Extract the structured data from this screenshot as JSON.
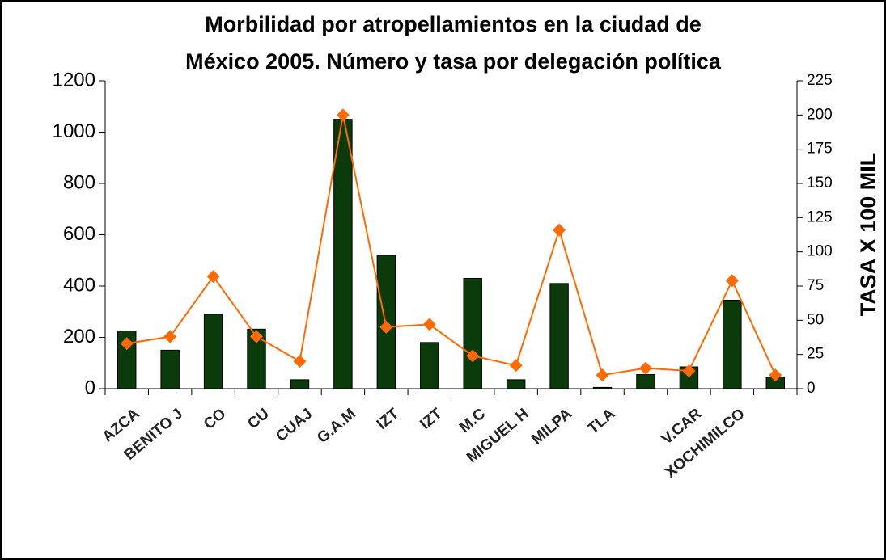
{
  "chart_data": {
    "type": "bar_line",
    "title": "Morbilidad por atropellamientos en la ciudad de",
    "subtitle": "México 2005. Número y tasa por delegación política",
    "y2_label": "TASA X 100 MIL",
    "categories": [
      null,
      "AZCA",
      "BENITO J",
      "CO",
      "CU",
      "CUAJ",
      "G.A.M",
      "IZT",
      "IZT",
      "M.C",
      "MIGUEL H",
      "MILPA",
      "TLA",
      null,
      "V.CAR",
      "XOCHIMILCO"
    ],
    "series": [
      {
        "type": "bar",
        "color": "#0b3b0b",
        "values": [
          225,
          150,
          290,
          232,
          35,
          1050,
          520,
          180,
          430,
          35,
          410,
          5,
          55,
          85,
          345,
          45
        ]
      },
      {
        "type": "line",
        "axis": "y2",
        "color": "#ff6a00",
        "values": [
          33,
          38,
          82,
          38,
          20,
          200,
          45,
          47,
          24,
          17,
          116,
          10,
          15,
          13,
          79,
          10
        ]
      }
    ],
    "ylim": [
      0,
      1200
    ],
    "yticks": [
      0,
      200,
      400,
      600,
      800,
      1000,
      1200
    ],
    "y2lim": [
      0,
      225
    ],
    "y2ticks": [
      0,
      25,
      50,
      75,
      100,
      125,
      150,
      175,
      200,
      225
    ]
  }
}
